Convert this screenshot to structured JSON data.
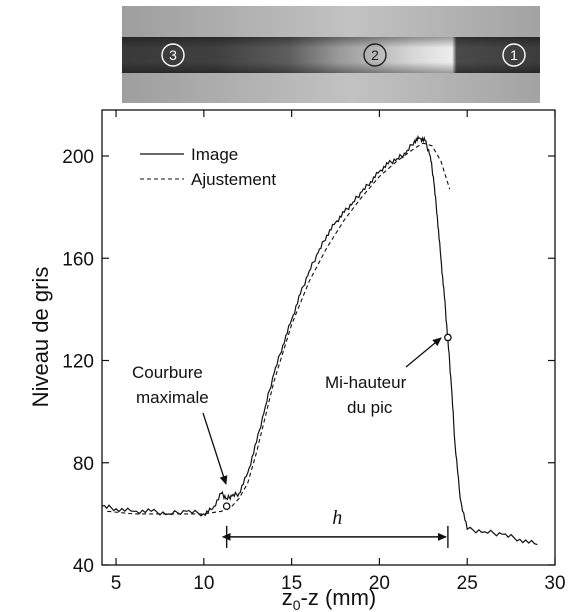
{
  "strip": {
    "labels": [
      "3",
      "2",
      "1"
    ]
  },
  "chart_data": {
    "type": "line",
    "xlabel": "z",
    "xlabel_sub": "0",
    "xlabel_rest": "-z (mm)",
    "ylabel": "Niveau de gris",
    "xlim": [
      4.2,
      30
    ],
    "ylim": [
      40,
      218
    ],
    "xticks": [
      5,
      10,
      15,
      20,
      25,
      30
    ],
    "yticks": [
      40,
      80,
      120,
      160,
      200
    ],
    "legend": {
      "position": "top-left",
      "image": "Image",
      "fit": "Ajustement"
    },
    "series": [
      {
        "name": "Image",
        "style": "solid",
        "x": [
          4.2,
          5,
          6,
          7,
          8,
          9,
          10,
          10.5,
          11,
          11.3,
          11.6,
          12,
          12.5,
          13,
          13.5,
          14,
          14.5,
          15,
          15.5,
          16,
          16.5,
          17,
          17.5,
          18,
          18.5,
          19,
          19.5,
          20,
          20.5,
          21,
          21.5,
          22,
          22.3,
          22.6,
          22.9,
          23.1,
          23.3,
          23.5,
          23.7,
          23.9,
          24.1,
          24.3,
          24.6,
          25,
          26,
          27,
          28,
          29
        ],
        "y": [
          63,
          62,
          61,
          61,
          60,
          61,
          60,
          62,
          68,
          66,
          67,
          68,
          76,
          88,
          102,
          115,
          126,
          136,
          146,
          155,
          162,
          169,
          174,
          178,
          182,
          186,
          190,
          194,
          197,
          199,
          201,
          206,
          207,
          206,
          200,
          190,
          176,
          160,
          145,
          128,
          110,
          88,
          66,
          54,
          53,
          52,
          50,
          48
        ]
      },
      {
        "name": "Ajustement",
        "style": "dashed",
        "x": [
          4.5,
          6,
          8,
          10,
          11,
          11.6,
          12,
          12.5,
          13,
          14,
          15,
          16,
          17,
          18,
          19,
          20,
          21,
          22,
          22.5,
          23,
          23.5,
          24
        ],
        "y": [
          61,
          60,
          60,
          60,
          61,
          63,
          66,
          72,
          84,
          112,
          134,
          151,
          164,
          175,
          184,
          192,
          198,
          203,
          205,
          204,
          198,
          187
        ]
      }
    ],
    "markers": [
      {
        "x": 11.3,
        "y": 63
      },
      {
        "x": 23.9,
        "y": 129
      }
    ],
    "annotations": {
      "courbure_line1": "Courbure",
      "courbure_line2": "maximale",
      "mi_line1": "Mi-hauteur",
      "mi_line2": "du pic",
      "h_label": "h"
    },
    "h_arrow": {
      "x1": 11.3,
      "x2": 23.9,
      "y": 51
    }
  }
}
